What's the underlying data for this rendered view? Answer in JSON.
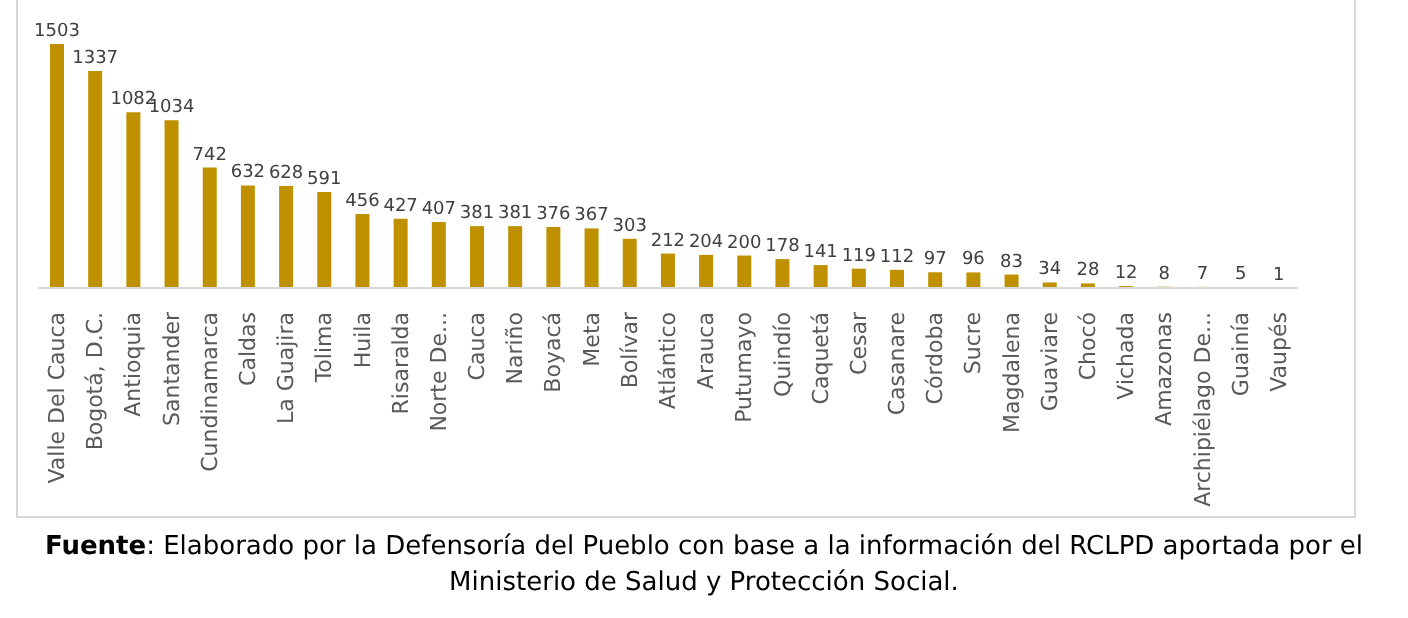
{
  "chart_data": {
    "type": "bar",
    "categories": [
      "Valle Del Cauca",
      "Bogotá, D.C.",
      "Antioquia",
      "Santander",
      "Cundinamarca",
      "Caldas",
      "La Guajira",
      "Tolima",
      "Huila",
      "Risaralda",
      "Norte De...",
      "Cauca",
      "Nariño",
      "Boyacá",
      "Meta",
      "Bolívar",
      "Atlántico",
      "Arauca",
      "Putumayo",
      "Quindío",
      "Caquetá",
      "Cesar",
      "Casanare",
      "Córdoba",
      "Sucre",
      "Magdalena",
      "Guaviare",
      "Chocó",
      "Vichada",
      "Amazonas",
      "Archipiélago De...",
      "Guainía",
      "Vaupés"
    ],
    "values": [
      1503,
      1337,
      1082,
      1034,
      742,
      632,
      628,
      591,
      456,
      427,
      407,
      381,
      381,
      376,
      367,
      303,
      212,
      204,
      200,
      178,
      141,
      119,
      112,
      97,
      96,
      83,
      34,
      28,
      12,
      8,
      7,
      5,
      1
    ],
    "color": "#bf9000",
    "data_labels": true,
    "tick_labels": "x",
    "annotations": [
      "Fuente: Elaborado por la Defensoría del Pueblo con base a la información del RCLPD aportada por el Ministerio de Salud y Protección Social."
    ]
  }
}
